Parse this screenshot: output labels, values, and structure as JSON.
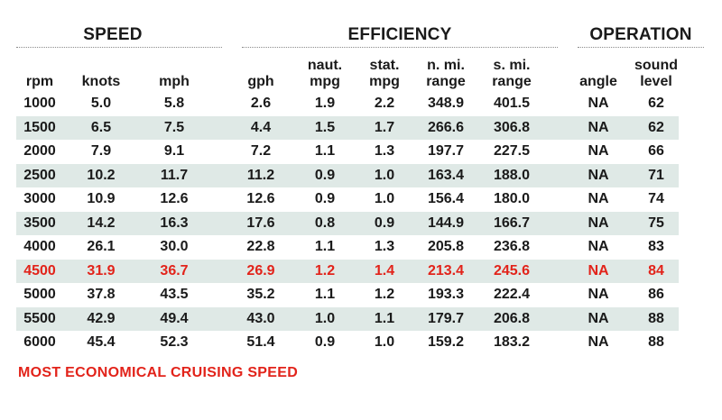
{
  "groups": {
    "speed": "SPEED",
    "efficiency": "EFFICIENCY",
    "operation": "OPERATION"
  },
  "columns": {
    "rpm": "rpm",
    "knots": "knots",
    "mph": "mph",
    "gph": "gph",
    "naut_mpg": [
      "naut.",
      "mpg"
    ],
    "stat_mpg": [
      "stat.",
      "mpg"
    ],
    "n_mi_range": [
      "n. mi.",
      "range"
    ],
    "s_mi_range": [
      "s. mi.",
      "range"
    ],
    "angle": "angle",
    "sound_level": [
      "sound",
      "level"
    ]
  },
  "rows": [
    [
      "1000",
      "5.0",
      "5.8",
      "2.6",
      "1.9",
      "2.2",
      "348.9",
      "401.5",
      "NA",
      "62"
    ],
    [
      "1500",
      "6.5",
      "7.5",
      "4.4",
      "1.5",
      "1.7",
      "266.6",
      "306.8",
      "NA",
      "62"
    ],
    [
      "2000",
      "7.9",
      "9.1",
      "7.2",
      "1.1",
      "1.3",
      "197.7",
      "227.5",
      "NA",
      "66"
    ],
    [
      "2500",
      "10.2",
      "11.7",
      "11.2",
      "0.9",
      "1.0",
      "163.4",
      "188.0",
      "NA",
      "71"
    ],
    [
      "3000",
      "10.9",
      "12.6",
      "12.6",
      "0.9",
      "1.0",
      "156.4",
      "180.0",
      "NA",
      "74"
    ],
    [
      "3500",
      "14.2",
      "16.3",
      "17.6",
      "0.8",
      "0.9",
      "144.9",
      "166.7",
      "NA",
      "75"
    ],
    [
      "4000",
      "26.1",
      "30.0",
      "22.8",
      "1.1",
      "1.3",
      "205.8",
      "236.8",
      "NA",
      "83"
    ],
    [
      "4500",
      "31.9",
      "36.7",
      "26.9",
      "1.2",
      "1.4",
      "213.4",
      "245.6",
      "NA",
      "84"
    ],
    [
      "5000",
      "37.8",
      "43.5",
      "35.2",
      "1.1",
      "1.2",
      "193.3",
      "222.4",
      "NA",
      "86"
    ],
    [
      "5500",
      "42.9",
      "49.4",
      "43.0",
      "1.0",
      "1.1",
      "179.7",
      "206.8",
      "NA",
      "88"
    ],
    [
      "6000",
      "45.4",
      "52.3",
      "51.4",
      "0.9",
      "1.0",
      "159.2",
      "183.2",
      "NA",
      "88"
    ]
  ],
  "highlight_row_rpm": "4500",
  "footer_note": "MOST ECONOMICAL CRUISING SPEED",
  "colors": {
    "highlight": "#e2231a",
    "row_shade": "#dfe9e6",
    "text": "#1a1a1a"
  }
}
